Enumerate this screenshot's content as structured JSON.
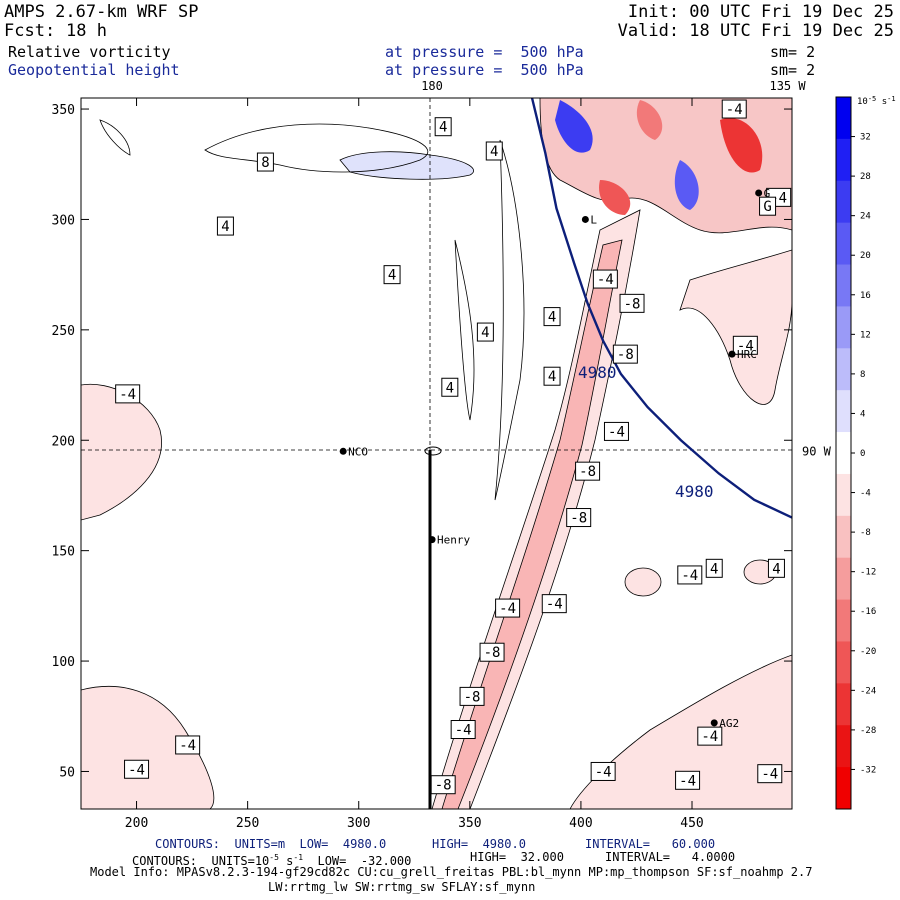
{
  "header": {
    "model": "AMPS 2.67-km WRF SP",
    "fcst_label": "Fcst:",
    "fcst_value": "18 h",
    "init": "Init: 00 UTC Fri 19 Dec 25",
    "valid": "Valid: 18 UTC Fri 19 Dec 25",
    "field1_name": "Relative vorticity",
    "field1_level": "at pressure =  500 hPa",
    "field1_sm": "sm= 2",
    "field2_name": "Geopotential height",
    "field2_level": "at pressure =  500 hPa",
    "field2_sm": "sm= 2"
  },
  "colors": {
    "height_contour": "#0d1f7a",
    "label_blue": "#1a2a9a"
  },
  "chart_data": {
    "type": "contour-map",
    "title": "Relative vorticity (shaded) and geopotential height at 500 hPa",
    "x_range": [
      175,
      495
    ],
    "y_range": [
      33,
      355
    ],
    "x_ticks": [
      200,
      250,
      300,
      350,
      400,
      450
    ],
    "y_ticks": [
      50,
      100,
      150,
      200,
      250,
      300,
      350
    ],
    "lon_labels": [
      {
        "text": "180",
        "x": 333
      },
      {
        "text": "135 W",
        "x": 493
      }
    ],
    "lat_labels": [
      {
        "text": "90 W",
        "y": 195
      }
    ],
    "reference_lines": {
      "x": 333,
      "y": 195
    },
    "transect_line": {
      "x": 333,
      "y_from": 33,
      "y_to": 195
    },
    "stations": [
      {
        "name": "NCO",
        "x": 293,
        "y": 195
      },
      {
        "name": "Henry",
        "x": 333,
        "y": 155
      },
      {
        "name": "HRC",
        "x": 468,
        "y": 239
      },
      {
        "name": "AG2",
        "x": 460,
        "y": 72
      },
      {
        "name": "L",
        "x": 402,
        "y": 300
      },
      {
        "name": "G",
        "x": 480,
        "y": 312
      }
    ],
    "height_contour": {
      "value": 4980,
      "labels": [
        "4980",
        "4980"
      ],
      "path": [
        [
          378,
          355
        ],
        [
          384,
          330
        ],
        [
          389,
          305
        ],
        [
          397,
          280
        ],
        [
          403,
          262
        ],
        [
          410,
          245
        ],
        [
          418,
          230
        ],
        [
          430,
          215
        ],
        [
          445,
          200
        ],
        [
          462,
          185
        ],
        [
          478,
          173
        ],
        [
          495,
          165
        ]
      ]
    },
    "contour_labels": [
      {
        "text": "4",
        "x": 361,
        "y": 331
      },
      {
        "text": "4",
        "x": 338,
        "y": 342
      },
      {
        "text": "8",
        "x": 258,
        "y": 326
      },
      {
        "text": "4",
        "x": 240,
        "y": 297
      },
      {
        "text": "4",
        "x": 315,
        "y": 275
      },
      {
        "text": "4",
        "x": 387,
        "y": 256
      },
      {
        "text": "4",
        "x": 357,
        "y": 249
      },
      {
        "text": "4",
        "x": 341,
        "y": 224
      },
      {
        "text": "4",
        "x": 387,
        "y": 229
      },
      {
        "text": "-4",
        "x": 196,
        "y": 221
      },
      {
        "text": "-4",
        "x": 223,
        "y": 62
      },
      {
        "text": "-4",
        "x": 200,
        "y": 51
      },
      {
        "text": "-4",
        "x": 411,
        "y": 273
      },
      {
        "text": "-8",
        "x": 423,
        "y": 262
      },
      {
        "text": "-8",
        "x": 420,
        "y": 239
      },
      {
        "text": "-4",
        "x": 416,
        "y": 204
      },
      {
        "text": "-8",
        "x": 403,
        "y": 186
      },
      {
        "text": "-8",
        "x": 399,
        "y": 165
      },
      {
        "text": "-4",
        "x": 388,
        "y": 126
      },
      {
        "text": "-4",
        "x": 367,
        "y": 124
      },
      {
        "text": "-8",
        "x": 360,
        "y": 104
      },
      {
        "text": "-8",
        "x": 351,
        "y": 84
      },
      {
        "text": "-4",
        "x": 347,
        "y": 69
      },
      {
        "text": "-8",
        "x": 338,
        "y": 44
      },
      {
        "text": "-4",
        "x": 410,
        "y": 50
      },
      {
        "text": "-4",
        "x": 448,
        "y": 46
      },
      {
        "text": "-4",
        "x": 449,
        "y": 139
      },
      {
        "text": "4",
        "x": 460,
        "y": 142
      },
      {
        "text": "4",
        "x": 488,
        "y": 142
      },
      {
        "text": "-4",
        "x": 458,
        "y": 66
      },
      {
        "text": "-4",
        "x": 485,
        "y": 49
      },
      {
        "text": "-4",
        "x": 474,
        "y": 243
      },
      {
        "text": "-4",
        "x": 469,
        "y": 350
      },
      {
        "text": "-4",
        "x": 489,
        "y": 310
      },
      {
        "text": "G",
        "x": 484,
        "y": 306
      }
    ],
    "colorbar": {
      "units_label": "10",
      "units_exp": "-5",
      "units_tail": "s",
      "units_tail_exp": "-1",
      "ticks": [
        "32",
        "28",
        "24",
        "20",
        "16",
        "12",
        "8",
        "4",
        "0",
        "-4",
        "-8",
        "-12",
        "-16",
        "-20",
        "-24",
        "-28",
        "-32"
      ],
      "colors": [
        "#0000f0",
        "#1f1ff4",
        "#3c3cf2",
        "#5a5af4",
        "#7878f5",
        "#9a9af7",
        "#bcbcfa",
        "#dfdffd",
        "#ffffff",
        "#fde3e3",
        "#f9c1c1",
        "#f59d9d",
        "#f27979",
        "#ef5656",
        "#ec3434",
        "#ea1414",
        "#f00000"
      ]
    }
  },
  "footer": {
    "line1_a": "CONTOURS:  UNITS=m  LOW=  4980.0",
    "line1_b": "HIGH=  4980.0",
    "line1_c": "INTERVAL=   60.000",
    "line2_a": "CONTOURS:  UNITS=10",
    "line2_exp1": "-5",
    "line2_b": " s",
    "line2_exp2": "-1",
    "line2_c": "  LOW=  -32.000",
    "line2_d": "HIGH=  32.000",
    "line2_e": "INTERVAL=   4.0000",
    "model_info": "Model Info: MPASv8.2.3-194-gf29cd82c CU:cu_grell_freitas PBL:bl_mynn MP:mp_thompson SF:sf_noahmp 2.7",
    "model_info2": "LW:rrtmg_lw SW:rrtmg_sw SFLAY:sf_mynn"
  }
}
